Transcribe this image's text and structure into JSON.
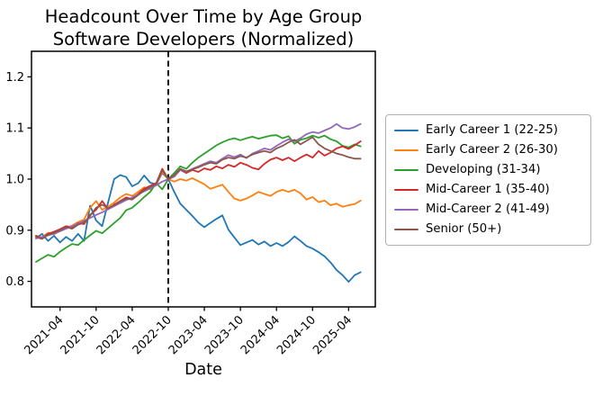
{
  "figure": {
    "title": "Headcount Over Time by Age Group",
    "subtitle": "Software Developers (Normalized)",
    "xlabel": "Date",
    "background": "#ffffff",
    "text_color": "#000000",
    "spine_color": "#000000"
  },
  "chart_data": {
    "type": "line",
    "title": "Headcount Over Time by Age Group",
    "subtitle": "Software Developers (Normalized)",
    "xlabel": "Date",
    "ylabel": "",
    "grid": false,
    "legend_position": "right-outside",
    "ylim": [
      0.75,
      1.25
    ],
    "yticks": [
      0.8,
      0.9,
      1.0,
      1.1,
      1.2
    ],
    "xticks": [
      "2021-04",
      "2021-10",
      "2022-04",
      "2022-10",
      "2023-04",
      "2023-10",
      "2024-04",
      "2024-10",
      "2025-04"
    ],
    "vline": {
      "x": "2022-10",
      "style": "dashed",
      "color": "#000000",
      "meaning": "normalization point"
    },
    "x": [
      "2020-12",
      "2021-01",
      "2021-02",
      "2021-03",
      "2021-04",
      "2021-05",
      "2021-06",
      "2021-07",
      "2021-08",
      "2021-09",
      "2021-10",
      "2021-11",
      "2021-12",
      "2022-01",
      "2022-02",
      "2022-03",
      "2022-04",
      "2022-05",
      "2022-06",
      "2022-07",
      "2022-08",
      "2022-09",
      "2022-10",
      "2022-11",
      "2022-12",
      "2023-01",
      "2023-02",
      "2023-03",
      "2023-04",
      "2023-05",
      "2023-06",
      "2023-07",
      "2023-08",
      "2023-09",
      "2023-10",
      "2023-11",
      "2023-12",
      "2024-01",
      "2024-02",
      "2024-03",
      "2024-04",
      "2024-05",
      "2024-06",
      "2024-07",
      "2024-08",
      "2024-09",
      "2024-10",
      "2024-11",
      "2024-12",
      "2025-01",
      "2025-02",
      "2025-03",
      "2025-04",
      "2025-05",
      "2025-06"
    ],
    "series": [
      {
        "name": "Early Career 1 (22-25)",
        "color": "#1f77b4",
        "values": [
          0.884,
          0.893,
          0.879,
          0.889,
          0.876,
          0.887,
          0.879,
          0.893,
          0.879,
          0.948,
          0.919,
          0.908,
          0.955,
          1.0,
          1.008,
          1.004,
          0.986,
          0.992,
          1.007,
          0.993,
          0.99,
          1.012,
          1.0,
          0.975,
          0.952,
          0.94,
          0.928,
          0.915,
          0.906,
          0.914,
          0.922,
          0.929,
          0.901,
          0.886,
          0.871,
          0.876,
          0.881,
          0.872,
          0.878,
          0.869,
          0.875,
          0.869,
          0.877,
          0.888,
          0.879,
          0.869,
          0.864,
          0.857,
          0.849,
          0.837,
          0.822,
          0.812,
          0.799,
          0.812,
          0.818
        ]
      },
      {
        "name": "Early Career 2 (26-30)",
        "color": "#ff7f0e",
        "values": [
          0.889,
          0.886,
          0.895,
          0.892,
          0.899,
          0.905,
          0.909,
          0.916,
          0.921,
          0.944,
          0.957,
          0.94,
          0.946,
          0.954,
          0.964,
          0.971,
          0.967,
          0.975,
          0.984,
          0.98,
          0.989,
          1.014,
          1.0,
          0.995,
          1.0,
          0.997,
          1.002,
          0.996,
          0.99,
          0.981,
          0.985,
          0.989,
          0.975,
          0.962,
          0.958,
          0.962,
          0.968,
          0.975,
          0.971,
          0.967,
          0.975,
          0.979,
          0.975,
          0.979,
          0.972,
          0.96,
          0.965,
          0.955,
          0.958,
          0.949,
          0.952,
          0.946,
          0.949,
          0.951,
          0.958
        ]
      },
      {
        "name": "Developing (31-34)",
        "color": "#2ca02c",
        "values": [
          0.838,
          0.845,
          0.852,
          0.848,
          0.858,
          0.866,
          0.873,
          0.871,
          0.881,
          0.89,
          0.899,
          0.894,
          0.904,
          0.914,
          0.924,
          0.939,
          0.944,
          0.954,
          0.965,
          0.975,
          0.992,
          0.98,
          1.0,
          1.012,
          1.025,
          1.02,
          1.032,
          1.042,
          1.05,
          1.058,
          1.066,
          1.072,
          1.077,
          1.08,
          1.076,
          1.08,
          1.083,
          1.079,
          1.082,
          1.085,
          1.086,
          1.08,
          1.084,
          1.069,
          1.077,
          1.08,
          1.085,
          1.081,
          1.085,
          1.078,
          1.074,
          1.065,
          1.062,
          1.068,
          1.064
        ]
      },
      {
        "name": "Mid-Career 1 (35-40)",
        "color": "#d62728",
        "values": [
          0.889,
          0.885,
          0.893,
          0.897,
          0.902,
          0.908,
          0.905,
          0.914,
          0.912,
          0.93,
          0.94,
          0.957,
          0.941,
          0.95,
          0.957,
          0.964,
          0.961,
          0.971,
          0.981,
          0.987,
          0.992,
          1.02,
          1.0,
          1.005,
          1.018,
          1.012,
          1.018,
          1.014,
          1.021,
          1.018,
          1.025,
          1.021,
          1.028,
          1.024,
          1.032,
          1.028,
          1.022,
          1.019,
          1.03,
          1.038,
          1.042,
          1.037,
          1.042,
          1.035,
          1.042,
          1.048,
          1.042,
          1.055,
          1.046,
          1.052,
          1.06,
          1.064,
          1.059,
          1.066,
          1.074
        ]
      },
      {
        "name": "Mid-Career 2 (41-49)",
        "color": "#9467bd",
        "values": [
          0.884,
          0.887,
          0.89,
          0.893,
          0.898,
          0.903,
          0.908,
          0.913,
          0.918,
          0.924,
          0.93,
          0.935,
          0.941,
          0.947,
          0.953,
          0.959,
          0.964,
          0.97,
          0.976,
          0.982,
          0.988,
          0.995,
          1.0,
          1.005,
          1.018,
          1.014,
          1.02,
          1.025,
          1.03,
          1.035,
          1.032,
          1.04,
          1.047,
          1.043,
          1.048,
          1.041,
          1.05,
          1.055,
          1.06,
          1.057,
          1.065,
          1.072,
          1.078,
          1.074,
          1.08,
          1.088,
          1.092,
          1.09,
          1.095,
          1.1,
          1.108,
          1.1,
          1.098,
          1.102,
          1.108
        ]
      },
      {
        "name": "Senior (50+)",
        "color": "#8c564b",
        "values": [
          0.887,
          0.883,
          0.891,
          0.895,
          0.9,
          0.906,
          0.903,
          0.911,
          0.915,
          0.928,
          0.944,
          0.95,
          0.943,
          0.949,
          0.956,
          0.962,
          0.96,
          0.969,
          0.978,
          0.985,
          0.99,
          1.017,
          1.0,
          1.008,
          1.02,
          1.015,
          1.019,
          1.023,
          1.028,
          1.032,
          1.03,
          1.038,
          1.042,
          1.04,
          1.045,
          1.042,
          1.048,
          1.052,
          1.055,
          1.052,
          1.06,
          1.065,
          1.072,
          1.077,
          1.068,
          1.075,
          1.082,
          1.068,
          1.06,
          1.055,
          1.05,
          1.047,
          1.043,
          1.04,
          1.04
        ]
      }
    ]
  }
}
